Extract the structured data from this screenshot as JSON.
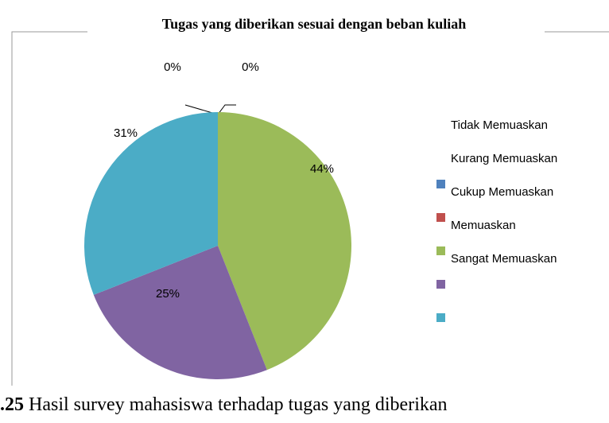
{
  "chart_data": {
    "type": "pie",
    "title": "Tugas yang diberikan sesuai dengan beban kuliah",
    "categories": [
      "Tidak Memuaskan",
      "Kurang Memuaskan",
      "Cukup Memuaskan",
      "Memuaskan",
      "Sangat Memuaskan"
    ],
    "values": [
      0,
      0,
      44,
      25,
      31
    ],
    "value_labels": [
      "0%",
      "0%",
      "44%",
      "25%",
      "31%"
    ],
    "colors": [
      "#4f81bd",
      "#c0504d",
      "#9bbb59",
      "#8064a2",
      "#4bacc6"
    ]
  },
  "caption": {
    "number": ".25",
    "text": "Hasil survey mahasiswa terhadap tugas yang diberikan"
  }
}
